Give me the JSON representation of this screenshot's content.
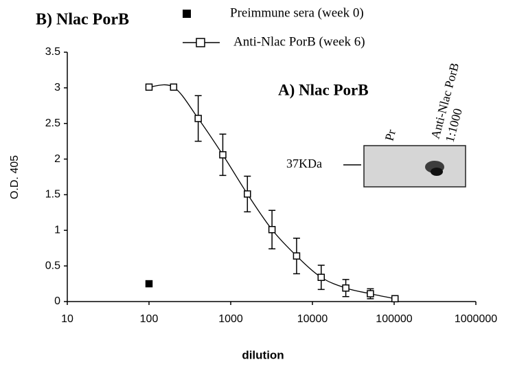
{
  "chart_data": {
    "type": "line",
    "title": "B) Nlac PorB",
    "x_label": "dilution",
    "y_label": "O.D. 405",
    "log_x": true,
    "xlim": [
      10,
      1000000
    ],
    "xticks": [
      10,
      100,
      1000,
      10000,
      100000,
      1000000
    ],
    "ylim": [
      0,
      3.5
    ],
    "yticks": [
      0,
      0.5,
      1,
      1.5,
      2,
      2.5,
      3,
      3.5
    ],
    "grid": false,
    "series": [
      {
        "name": "Preimmune sera (week 0)",
        "color": "#000000",
        "marker": "filled-square",
        "x": [
          100
        ],
        "values": [
          0.25
        ]
      },
      {
        "name": "Anti-Nlac PorB (week 6)",
        "color": "#000000",
        "marker": "open-square",
        "x": [
          100,
          200,
          400,
          800,
          1600,
          3200,
          6400,
          12800,
          25600,
          51200,
          102400
        ],
        "values": [
          3.01,
          3.01,
          2.57,
          2.06,
          1.51,
          1.01,
          0.64,
          0.34,
          0.19,
          0.11,
          0.04
        ],
        "errors": [
          0,
          0,
          0.32,
          0.29,
          0.25,
          0.27,
          0.25,
          0.17,
          0.12,
          0.07,
          0.03
        ]
      }
    ],
    "inset": {
      "title": "A) Nlac PorB",
      "marker": "37KDa",
      "lanes": [
        "Pr",
        "Anti-Nlac PorB",
        "1:1000"
      ]
    }
  }
}
